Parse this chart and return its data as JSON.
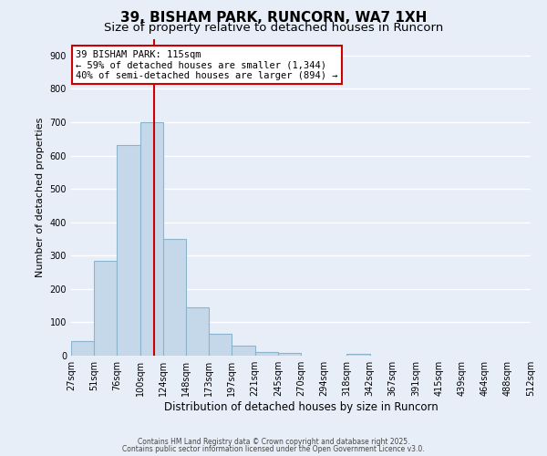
{
  "title": "39, BISHAM PARK, RUNCORN, WA7 1XH",
  "subtitle": "Size of property relative to detached houses in Runcorn",
  "xlabel": "Distribution of detached houses by size in Runcorn",
  "ylabel": "Number of detached properties",
  "bar_values": [
    43,
    285,
    632,
    700,
    350,
    145,
    65,
    30,
    10,
    7,
    0,
    0,
    5,
    0,
    0,
    0,
    0,
    0,
    0,
    0
  ],
  "bar_labels": [
    "27sqm",
    "51sqm",
    "76sqm",
    "100sqm",
    "124sqm",
    "148sqm",
    "173sqm",
    "197sqm",
    "221sqm",
    "245sqm",
    "270sqm",
    "294sqm",
    "318sqm",
    "342sqm",
    "367sqm",
    "391sqm",
    "415sqm",
    "439sqm",
    "464sqm",
    "488sqm",
    "512sqm"
  ],
  "bar_color": "#c5d8ea",
  "bar_edge_color": "#8ab4cc",
  "bar_edge_width": 0.8,
  "vline_color": "#cc0000",
  "vline_x": 3.63,
  "ylim": [
    0,
    950
  ],
  "yticks": [
    0,
    100,
    200,
    300,
    400,
    500,
    600,
    700,
    800,
    900
  ],
  "annotation_title": "39 BISHAM PARK: 115sqm",
  "annotation_line1": "← 59% of detached houses are smaller (1,344)",
  "annotation_line2": "40% of semi-detached houses are larger (894) →",
  "annotation_box_color": "#ffffff",
  "annotation_box_edge_color": "#cc0000",
  "footer_line1": "Contains HM Land Registry data © Crown copyright and database right 2025.",
  "footer_line2": "Contains public sector information licensed under the Open Government Licence v3.0.",
  "bg_color": "#e8eef8",
  "grid_color": "#ffffff",
  "tick_label_fontsize": 7,
  "ylabel_fontsize": 8,
  "xlabel_fontsize": 8.5,
  "annotation_fontsize": 7.5,
  "title_fontsize": 11,
  "subtitle_fontsize": 9.5
}
